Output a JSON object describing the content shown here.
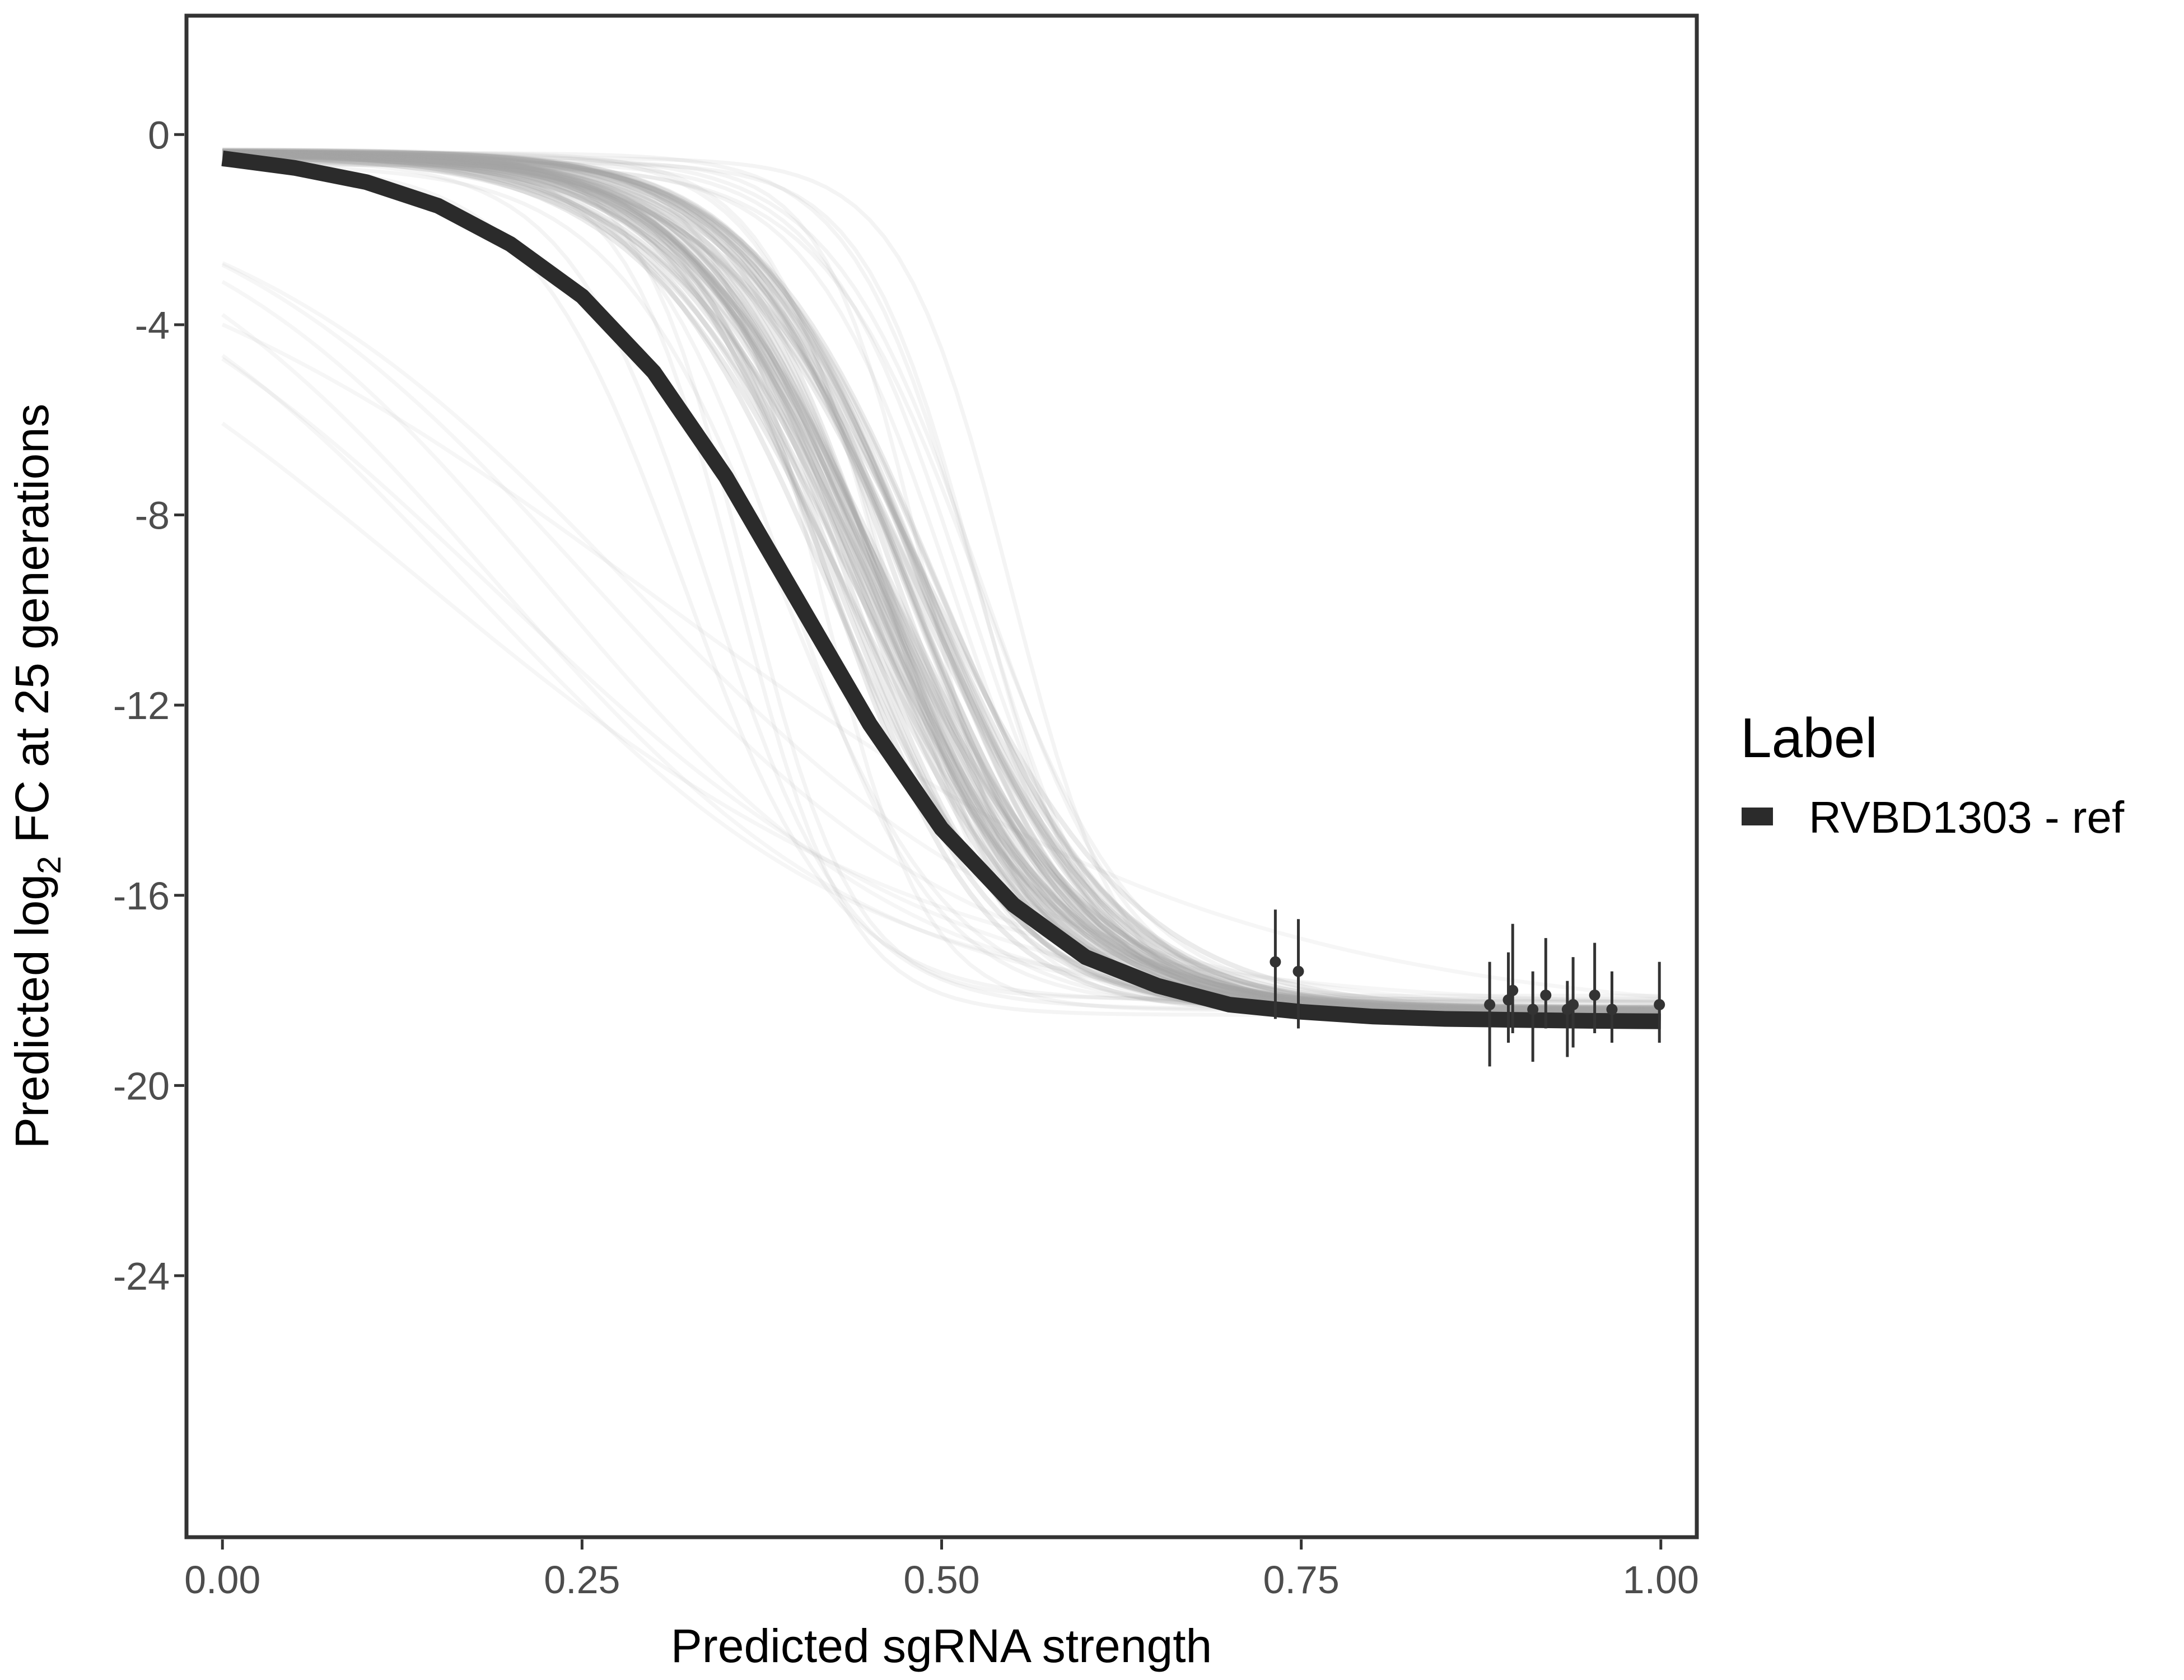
{
  "chart_data": {
    "type": "line",
    "title": "",
    "xlabel": "Predicted sgRNA strength",
    "ylabel_parts": {
      "before": "Predicted  log",
      "subscript": "2",
      "after": " FC at 25 generations"
    },
    "xlim": [
      -0.025,
      1.025
    ],
    "ylim": [
      -29.5,
      2.5
    ],
    "x_ticks": [
      0,
      0.25,
      0.5,
      0.75,
      1
    ],
    "x_tick_labels": [
      "0.00",
      "0.25",
      "0.50",
      "0.75",
      "1.00"
    ],
    "y_ticks": [
      0,
      -4,
      -8,
      -12,
      -16,
      -20,
      -24
    ],
    "y_tick_labels": [
      "0",
      "-4",
      "-8",
      "-12",
      "-16",
      "-20",
      "-24"
    ],
    "grid": false,
    "legend": {
      "title": "Label",
      "position": "right",
      "entries": [
        {
          "label": "RVBD1303 - ref",
          "color": "#2b2b2b"
        }
      ]
    },
    "series": [
      {
        "name": "RVBD1303 - ref",
        "color": "#2b2b2b",
        "x": [
          0,
          0.05,
          0.1,
          0.15,
          0.2,
          0.25,
          0.3,
          0.35,
          0.4,
          0.45,
          0.5,
          0.55,
          0.6,
          0.65,
          0.7,
          0.75,
          0.8,
          0.85,
          0.9,
          0.95,
          1
        ],
        "y": [
          -0.5,
          -0.7,
          -1.0,
          -1.5,
          -2.3,
          -3.4,
          -5.0,
          -7.2,
          -9.8,
          -12.4,
          -14.6,
          -16.2,
          -17.3,
          -17.9,
          -18.3,
          -18.45,
          -18.55,
          -18.6,
          -18.62,
          -18.64,
          -18.65
        ]
      }
    ],
    "posterior_draws": {
      "description": "sampled posterior curves",
      "color": "#a6a6a6",
      "count": 80
    },
    "observations": [
      {
        "x": 0.732,
        "y": -17.4,
        "lower": -18.6,
        "upper": -16.3
      },
      {
        "x": 0.748,
        "y": -17.6,
        "lower": -18.8,
        "upper": -16.5
      },
      {
        "x": 0.881,
        "y": -18.3,
        "lower": -19.6,
        "upper": -17.4
      },
      {
        "x": 0.894,
        "y": -18.2,
        "lower": -19.1,
        "upper": -17.2
      },
      {
        "x": 0.897,
        "y": -18.0,
        "lower": -18.9,
        "upper": -16.6
      },
      {
        "x": 0.911,
        "y": -18.4,
        "lower": -19.5,
        "upper": -17.6
      },
      {
        "x": 0.92,
        "y": -18.1,
        "lower": -18.8,
        "upper": -16.9
      },
      {
        "x": 0.935,
        "y": -18.4,
        "lower": -19.4,
        "upper": -17.8
      },
      {
        "x": 0.939,
        "y": -18.3,
        "lower": -19.2,
        "upper": -17.3
      },
      {
        "x": 0.954,
        "y": -18.1,
        "lower": -18.9,
        "upper": -17.0
      },
      {
        "x": 0.966,
        "y": -18.4,
        "lower": -19.1,
        "upper": -17.6
      },
      {
        "x": 0.999,
        "y": -18.3,
        "lower": -19.1,
        "upper": -17.4
      }
    ]
  }
}
